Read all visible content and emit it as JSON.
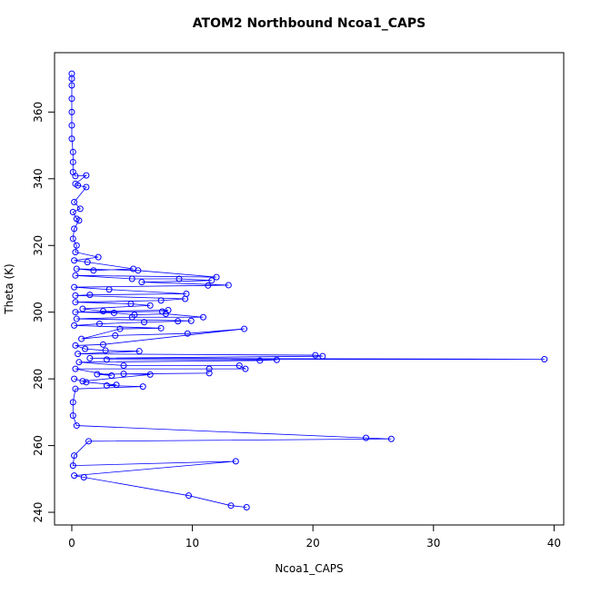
{
  "chart_data": {
    "type": "line",
    "title": "ATOM2 Northbound Ncoa1_CAPS",
    "x_label": "Ncoa1_CAPS",
    "y_label": "Theta (K)",
    "color": "#0000ff",
    "markers": true,
    "x": [
      14.5,
      13.2,
      9.7,
      1.0,
      0.2,
      13.6,
      0.1,
      0.2,
      1.4,
      26.5,
      24.4,
      0.4,
      0.1,
      0.1,
      0.3,
      5.9,
      2.9,
      3.7,
      1.2,
      0.2,
      0.9,
      6.5,
      4.3,
      11.4,
      2.1,
      3.3,
      0.3,
      11.4,
      14.4,
      13.9,
      4.3,
      0.6,
      15.6,
      17.0,
      2.9,
      39.2,
      1.5,
      20.8,
      20.2,
      0.5,
      5.6,
      2.8,
      1.1,
      0.3,
      2.6,
      14.3,
      9.6,
      3.6,
      0.8,
      4.0,
      7.4,
      0.2,
      2.3,
      6.0,
      8.8,
      9.9,
      0.4,
      5.0,
      10.9,
      7.8,
      5.2,
      3.5,
      0.3,
      7.5,
      8.0,
      2.6,
      0.9,
      6.5,
      4.9,
      0.3,
      7.4,
      9.4,
      0.3,
      1.5,
      9.5,
      3.1,
      0.2,
      11.3,
      13.0,
      5.8,
      11.6,
      8.9,
      5.0,
      0.3,
      12.0,
      5.5,
      0.4,
      1.8,
      5.1,
      1.3,
      0.2,
      2.2,
      0.3,
      0.4,
      0.1,
      0.2,
      0.6,
      0.4,
      0.1,
      0.7,
      0.2,
      1.2,
      0.5,
      0.3,
      1.2,
      0.3,
      0.1,
      0.1,
      0.1,
      0.0,
      0.0,
      0.0,
      0.0,
      0.0,
      0.0,
      0.0
    ],
    "values": [
      241.5,
      242,
      245,
      250.5,
      251,
      255.3,
      254,
      257,
      261.3,
      262,
      262.3,
      266,
      269,
      273,
      277,
      277.7,
      278,
      278.2,
      279,
      280,
      279.3,
      281.3,
      281.5,
      281.7,
      281.4,
      281,
      283,
      283,
      283,
      284,
      284,
      285,
      285.5,
      285.7,
      285.8,
      285.9,
      286.2,
      286.8,
      287.1,
      287.5,
      288.3,
      288.5,
      289,
      290,
      290.3,
      295,
      293.6,
      293,
      292,
      295,
      295.2,
      296,
      296.5,
      297,
      297.3,
      297.4,
      298,
      298.5,
      298.5,
      299.5,
      299.2,
      299.8,
      300,
      300.2,
      300.6,
      300.3,
      301,
      302,
      302.5,
      303,
      303.5,
      304,
      305,
      305.2,
      305.5,
      306.8,
      307.5,
      308,
      308.1,
      309,
      309.5,
      310,
      310,
      311,
      310.5,
      312.5,
      313,
      312.5,
      313,
      315,
      315.5,
      316.5,
      318,
      320,
      322,
      325,
      327.5,
      328,
      330,
      331,
      333,
      337.5,
      338,
      338.5,
      341,
      340.8,
      342,
      345,
      348,
      352,
      356,
      360,
      364,
      368,
      370,
      371.5
    ],
    "xlim": [
      -1.43,
      40.8
    ],
    "ylim": [
      236.2,
      377.8
    ],
    "xticks": [
      0,
      10,
      20,
      30,
      40
    ],
    "yticks": [
      240,
      260,
      280,
      300,
      320,
      340,
      360
    ]
  }
}
